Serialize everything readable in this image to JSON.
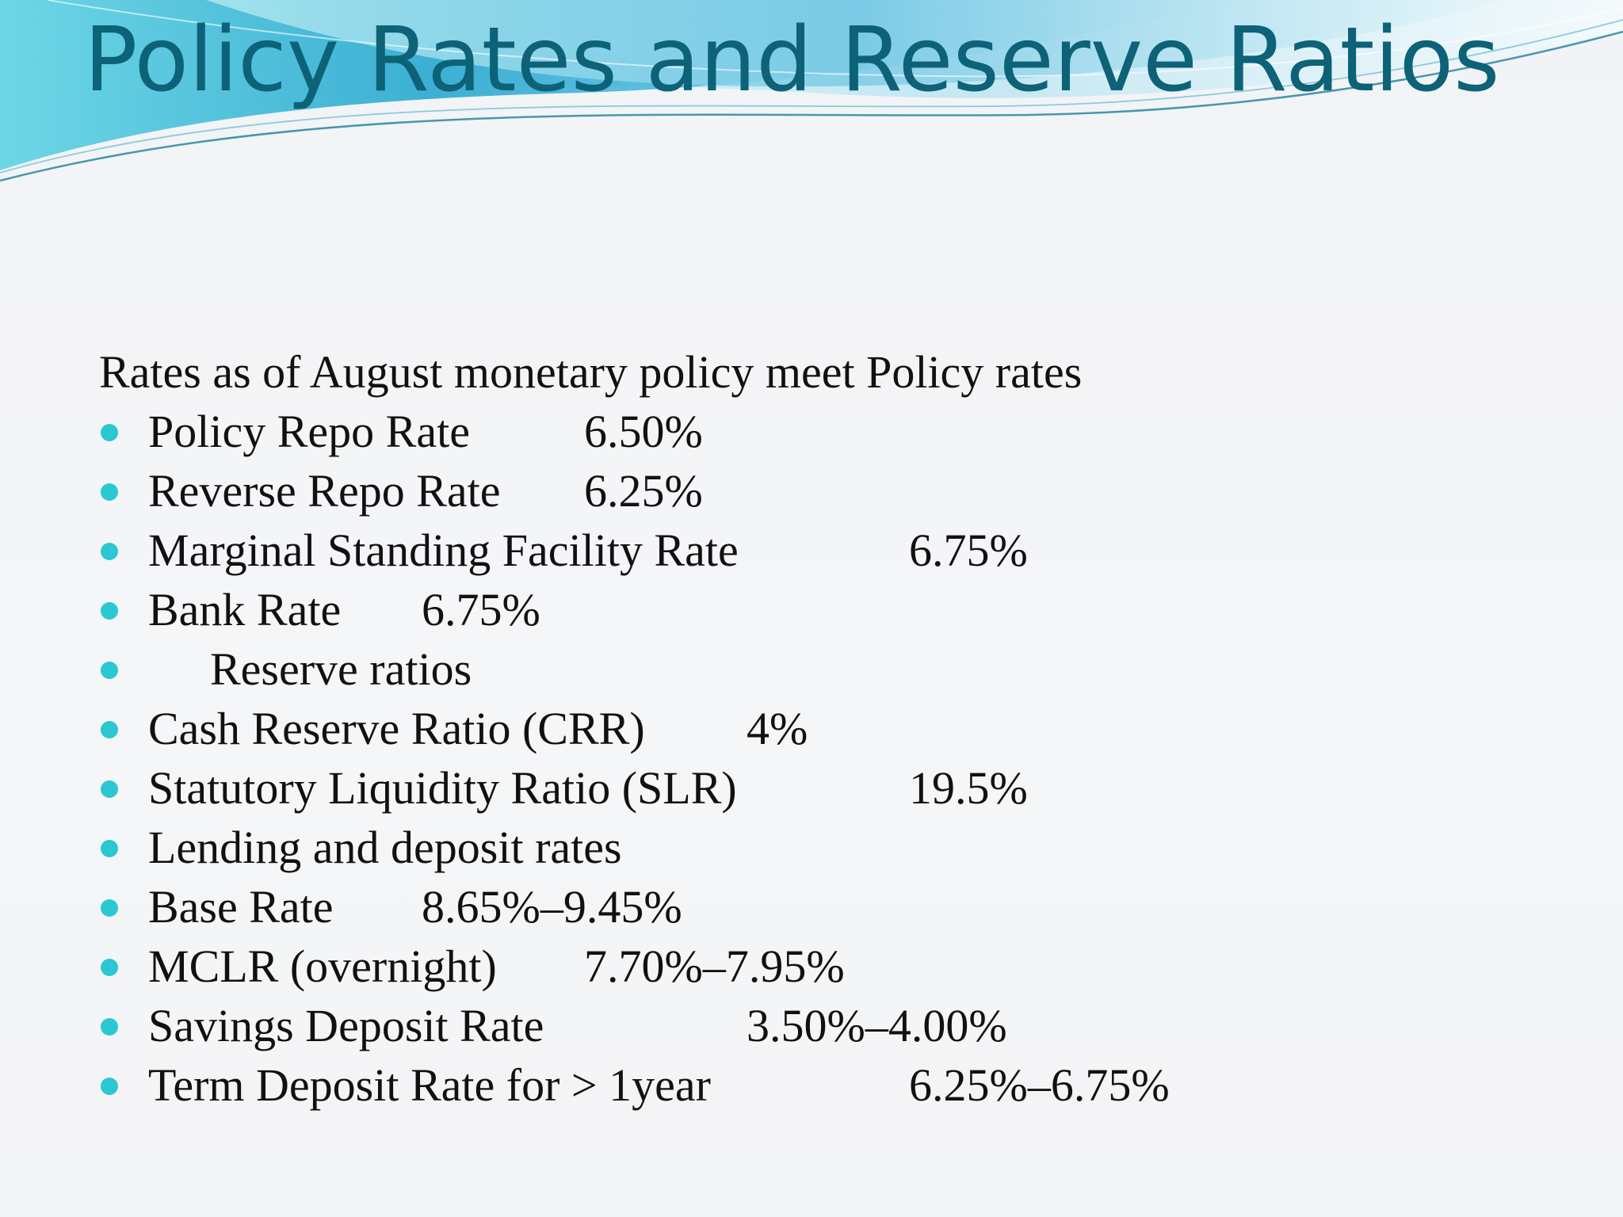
{
  "slide": {
    "title": "Policy Rates and Reserve Ratios",
    "intro": "Rates as of August monetary policy meet Policy rates",
    "items": [
      {
        "label": "Policy Repo Rate",
        "value": "6.50%"
      },
      {
        "label": "Reverse Repo Rate",
        "value": "6.25%"
      },
      {
        "label": "Marginal Standing Facility Rate",
        "value": "6.75%"
      },
      {
        "label": "Bank Rate",
        "value": "6.75%"
      },
      {
        "label": "Reserve ratios",
        "value": ""
      },
      {
        "label": "Cash Reserve Ratio (CRR)",
        "value": "4%"
      },
      {
        "label": "Statutory Liquidity Ratio (SLR)",
        "value": "19.5%"
      },
      {
        "label": "Lending and deposit rates",
        "value": ""
      },
      {
        "label": "Base Rate",
        "value": "8.65%–9.45%"
      },
      {
        "label": "MCLR (overnight)",
        "value": "7.70%–7.95%"
      },
      {
        "label": "Savings Deposit Rate",
        "value": "3.50%–4.00%"
      },
      {
        "label": "Term Deposit Rate for > 1year",
        "value": "6.25%–6.75%"
      }
    ]
  },
  "colors": {
    "title": "#0d6277",
    "bullet": "#2bc7d3",
    "wave_dark": "#3aaed0",
    "wave_light": "#bfe9f2"
  }
}
